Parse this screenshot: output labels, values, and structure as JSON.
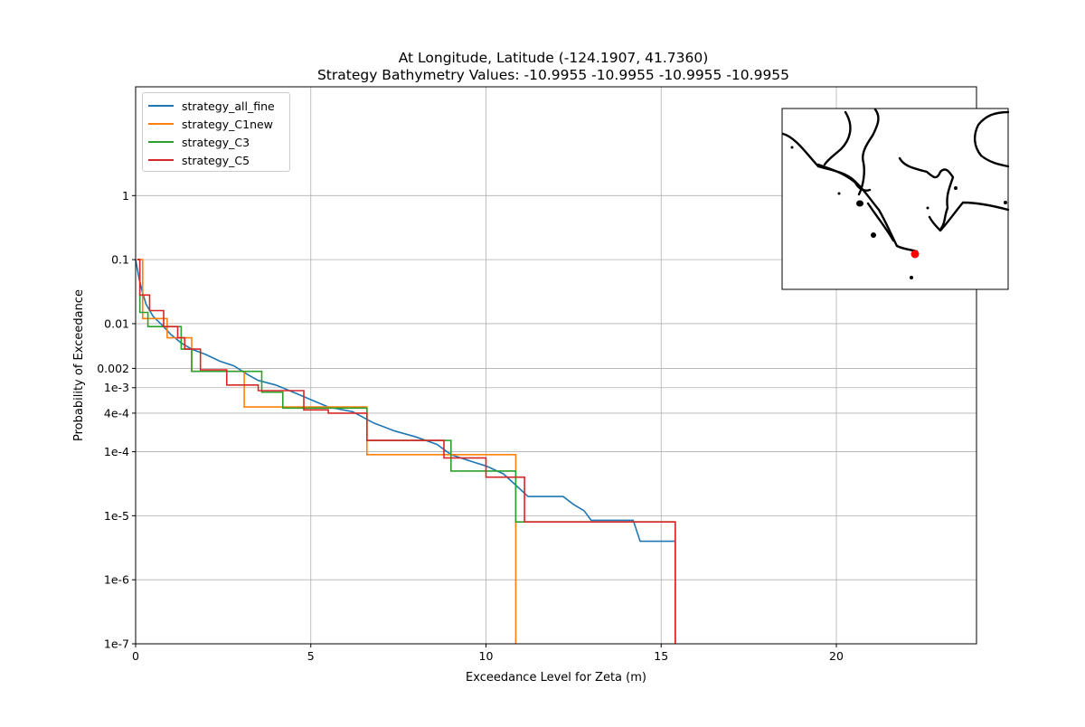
{
  "chart_data": {
    "type": "line",
    "title": "At Longitude, Latitude (-124.1907,  41.7360)",
    "subtitle": "Strategy Bathymetry Values:  -10.9955  -10.9955  -10.9955  -10.9955",
    "xlabel": "Exceedance Level for Zeta (m)",
    "ylabel": "Probability of Exceedance",
    "xlim": [
      0,
      24
    ],
    "ylim": [
      1e-07,
      50
    ],
    "yscale": "log",
    "grid": true,
    "legend_position": "top-left",
    "x_ticks": [
      {
        "value": 0,
        "label": "0"
      },
      {
        "value": 5,
        "label": "5"
      },
      {
        "value": 10,
        "label": "10"
      },
      {
        "value": 15,
        "label": "15"
      },
      {
        "value": 20,
        "label": "20"
      }
    ],
    "y_ticks": [
      {
        "value": 1e-07,
        "label": "1e-7"
      },
      {
        "value": 1e-06,
        "label": "1e-6"
      },
      {
        "value": 1e-05,
        "label": "1e-5"
      },
      {
        "value": 0.0001,
        "label": "1e-4"
      },
      {
        "value": 0.0004,
        "label": "4e-4"
      },
      {
        "value": 0.001,
        "label": "1e-3"
      },
      {
        "value": 0.002,
        "label": "0.002"
      },
      {
        "value": 0.01,
        "label": "0.01"
      },
      {
        "value": 0.1,
        "label": "0.1"
      },
      {
        "value": 1,
        "label": "1"
      }
    ],
    "series": [
      {
        "name": "strategy_all_fine",
        "color": "#1f77b4",
        "points": [
          [
            0.0,
            0.1
          ],
          [
            0.1,
            0.05
          ],
          [
            0.2,
            0.03
          ],
          [
            0.3,
            0.02
          ],
          [
            0.5,
            0.013
          ],
          [
            0.8,
            0.009
          ],
          [
            1.0,
            0.0068
          ],
          [
            1.3,
            0.005
          ],
          [
            1.6,
            0.004
          ],
          [
            2.0,
            0.0033
          ],
          [
            2.4,
            0.0026
          ],
          [
            2.8,
            0.0022
          ],
          [
            3.2,
            0.0016
          ],
          [
            3.5,
            0.0013
          ],
          [
            4.0,
            0.0011
          ],
          [
            4.5,
            0.00085
          ],
          [
            5.0,
            0.00065
          ],
          [
            5.5,
            0.0005
          ],
          [
            6.2,
            0.00042
          ],
          [
            6.8,
            0.00028
          ],
          [
            7.4,
            0.00021
          ],
          [
            8.0,
            0.00017
          ],
          [
            8.6,
            0.00013
          ],
          [
            9.0,
            9e-05
          ],
          [
            9.6,
            7e-05
          ],
          [
            10.0,
            6e-05
          ],
          [
            10.5,
            4.5e-05
          ],
          [
            11.2,
            2e-05
          ],
          [
            12.2,
            2e-05
          ],
          [
            12.5,
            1.5e-05
          ],
          [
            12.8,
            1.2e-05
          ],
          [
            13.0,
            8.5e-06
          ],
          [
            14.2,
            8.5e-06
          ],
          [
            14.4,
            4e-06
          ],
          [
            15.4,
            4e-06
          ],
          [
            15.4,
            1e-07
          ]
        ]
      },
      {
        "name": "strategy_C1new",
        "color": "#ff7f0e",
        "points": [
          [
            0.05,
            0.1
          ],
          [
            0.2,
            0.1
          ],
          [
            0.2,
            0.012
          ],
          [
            0.9,
            0.012
          ],
          [
            0.9,
            0.006
          ],
          [
            1.6,
            0.006
          ],
          [
            1.6,
            0.0018
          ],
          [
            3.1,
            0.0018
          ],
          [
            3.1,
            0.0005
          ],
          [
            6.6,
            0.0005
          ],
          [
            6.6,
            9e-05
          ],
          [
            10.85,
            9e-05
          ],
          [
            10.85,
            1e-07
          ]
        ]
      },
      {
        "name": "strategy_C3",
        "color": "#2ca02c",
        "points": [
          [
            0.05,
            0.1
          ],
          [
            0.12,
            0.1
          ],
          [
            0.12,
            0.015
          ],
          [
            0.35,
            0.015
          ],
          [
            0.35,
            0.009
          ],
          [
            1.3,
            0.009
          ],
          [
            1.3,
            0.004
          ],
          [
            1.6,
            0.004
          ],
          [
            1.6,
            0.0018
          ],
          [
            3.6,
            0.0018
          ],
          [
            3.6,
            0.00085
          ],
          [
            4.2,
            0.00085
          ],
          [
            4.2,
            0.00048
          ],
          [
            6.6,
            0.00048
          ],
          [
            6.6,
            0.00015
          ],
          [
            9.0,
            0.00015
          ],
          [
            9.0,
            5e-05
          ],
          [
            10.85,
            5e-05
          ],
          [
            10.85,
            8e-06
          ],
          [
            15.4,
            8e-06
          ],
          [
            15.4,
            1e-07
          ]
        ]
      },
      {
        "name": "strategy_C5",
        "color": "#d62728",
        "points": [
          [
            0.05,
            0.1
          ],
          [
            0.12,
            0.1
          ],
          [
            0.12,
            0.028
          ],
          [
            0.4,
            0.028
          ],
          [
            0.4,
            0.016
          ],
          [
            0.8,
            0.016
          ],
          [
            0.8,
            0.009
          ],
          [
            1.2,
            0.009
          ],
          [
            1.2,
            0.006
          ],
          [
            1.4,
            0.006
          ],
          [
            1.4,
            0.004
          ],
          [
            1.85,
            0.004
          ],
          [
            1.85,
            0.0019
          ],
          [
            2.6,
            0.0019
          ],
          [
            2.6,
            0.0011
          ],
          [
            3.5,
            0.0011
          ],
          [
            3.5,
            0.0009
          ],
          [
            4.8,
            0.0009
          ],
          [
            4.8,
            0.00045
          ],
          [
            5.5,
            0.00045
          ],
          [
            5.5,
            0.0004
          ],
          [
            6.6,
            0.0004
          ],
          [
            6.6,
            0.00015
          ],
          [
            8.8,
            0.00015
          ],
          [
            8.8,
            8e-05
          ],
          [
            10.0,
            8e-05
          ],
          [
            10.0,
            4e-05
          ],
          [
            11.1,
            4e-05
          ],
          [
            11.1,
            8e-06
          ],
          [
            15.4,
            8e-06
          ],
          [
            15.4,
            1e-07
          ]
        ]
      }
    ],
    "inset_map": {
      "content": "coastline map",
      "marker_color": "#ff0000",
      "coast_color": "#000000"
    }
  }
}
